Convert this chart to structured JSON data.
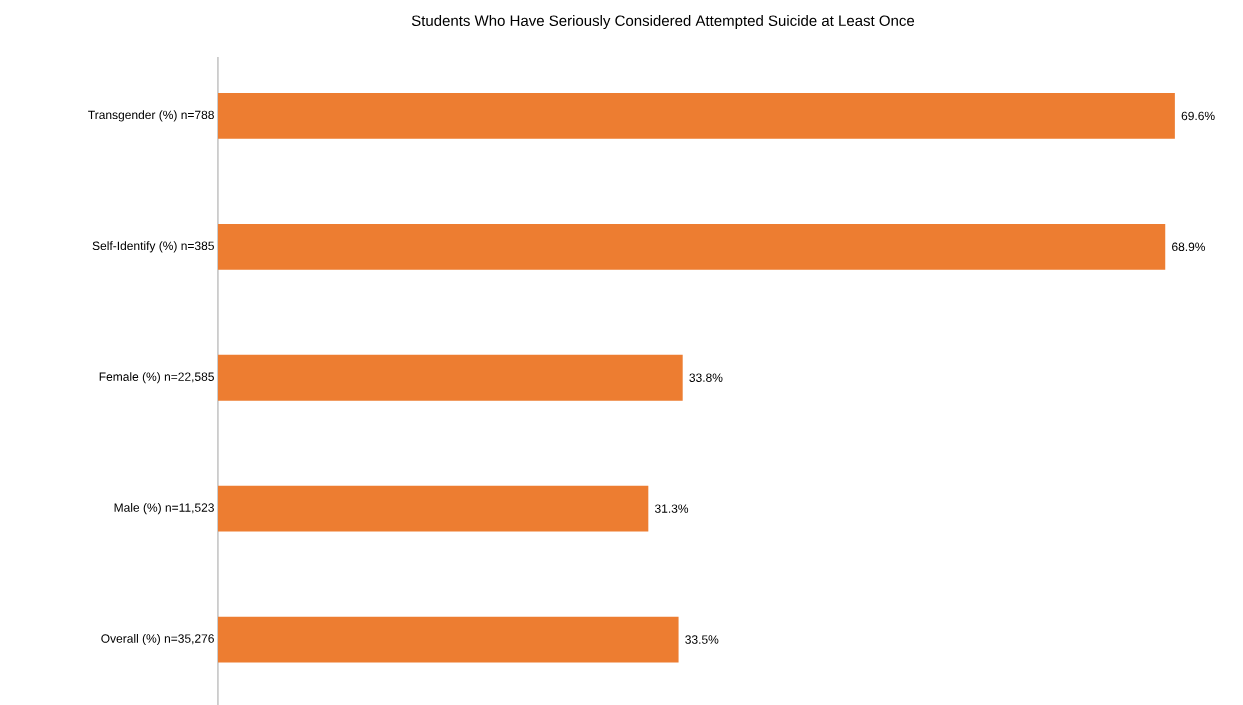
{
  "chart_data": {
    "type": "bar",
    "orientation": "horizontal",
    "title": "Students Who Have Seriously Considered Attempted Suicide at Least Once",
    "categories": [
      "Transgender (%) n=788",
      "Self-Identify (%) n=385",
      "Female (%) n=22,585",
      "Male (%) n=11,523",
      "Overall (%) n=35,276"
    ],
    "values": [
      69.6,
      68.9,
      33.8,
      31.3,
      33.5
    ],
    "value_labels": [
      "69.6%",
      "68.9%",
      "33.8%",
      "31.3%",
      "33.5%"
    ],
    "color": "#ed7d31"
  }
}
